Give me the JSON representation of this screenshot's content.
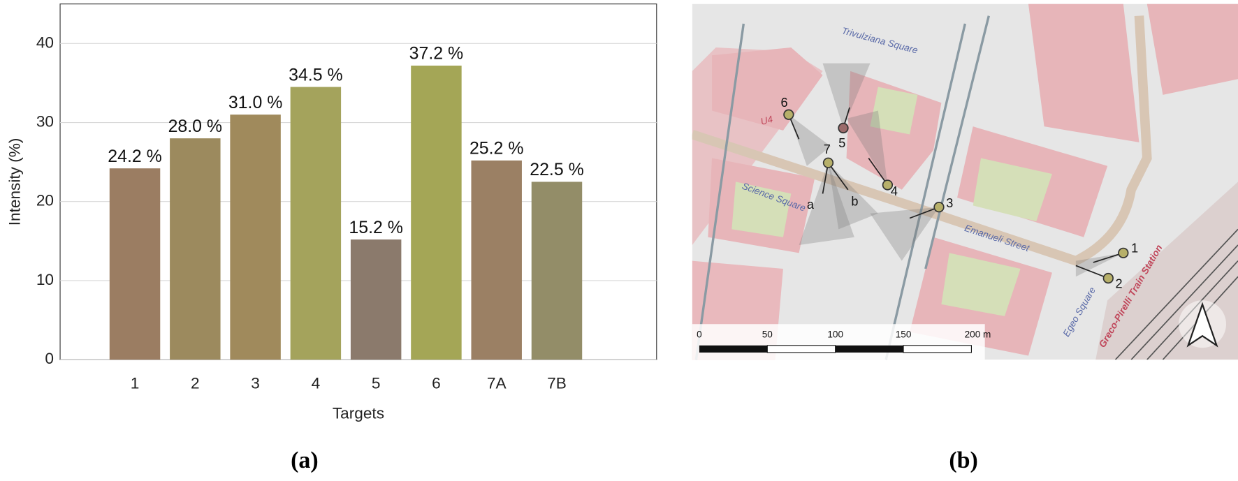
{
  "chart_data": {
    "type": "bar",
    "xlabel": "Targets",
    "ylabel": "Intensity (%)",
    "categories": [
      "1",
      "2",
      "3",
      "4",
      "5",
      "6",
      "7A",
      "7B"
    ],
    "values": [
      24.2,
      28.0,
      31.0,
      34.5,
      15.2,
      37.2,
      25.2,
      22.5
    ],
    "value_labels": [
      "24.2 %",
      "28.0 %",
      "31.0 %",
      "34.5 %",
      "15.2 %",
      "37.2 %",
      "25.2 %",
      "22.5 %"
    ],
    "colors": [
      "#9b7d62",
      "#9c8a5e",
      "#a08a5c",
      "#a4a35c",
      "#8b7a6c",
      "#a4a656",
      "#9b8064",
      "#938d68"
    ],
    "ylim": [
      0,
      45
    ],
    "yticks": [
      0,
      10,
      20,
      30,
      40
    ],
    "grid": true
  },
  "panels": [
    "(a)",
    "(b)"
  ],
  "map": {
    "places": [
      "Trivulziana Square",
      "U4",
      "Science Square",
      "Emanueli Street",
      "Egeo Square",
      "Greco-Pirelli Train Station"
    ],
    "points": [
      "1",
      "2",
      "3",
      "4",
      "5",
      "6",
      "7",
      "a",
      "b"
    ],
    "scale": [
      "0",
      "50",
      "100",
      "150",
      "200 m"
    ]
  }
}
